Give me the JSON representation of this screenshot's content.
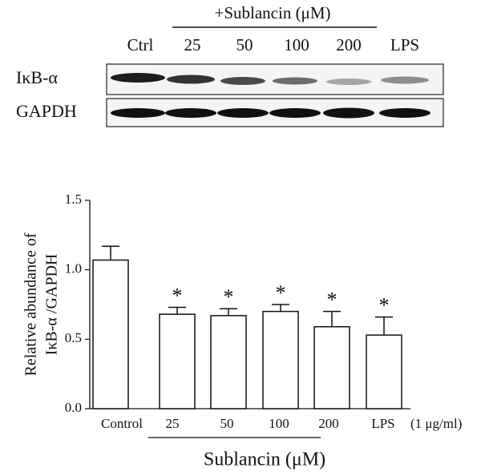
{
  "blot": {
    "treatment_label": "+Sublancin (μM)",
    "lanes": [
      "Ctrl",
      "25",
      "50",
      "100",
      "200",
      "LPS"
    ],
    "rows": [
      "IκB-α",
      "GAPDH"
    ]
  },
  "chart_data": {
    "type": "bar",
    "y_label_lines": [
      "Relative abundance of",
      "IκB-α /GAPDH"
    ],
    "x_label": "Sublancin (μM)",
    "lps_note": "(1 μg/ml)",
    "categories": [
      "Control",
      "25",
      "50",
      "100",
      "200",
      "LPS"
    ],
    "values": [
      1.07,
      0.68,
      0.67,
      0.7,
      0.59,
      0.53
    ],
    "errors": [
      0.1,
      0.05,
      0.05,
      0.05,
      0.11,
      0.13
    ],
    "significance": [
      null,
      "*",
      "*",
      "*",
      "*",
      "*"
    ],
    "color": "#ffffff",
    "ylim": [
      0,
      1.5
    ],
    "yticks": [
      {
        "value": 0,
        "label": "0.0"
      },
      0.5,
      {
        "value": 1,
        "label": "1.0"
      },
      1.5
    ]
  }
}
